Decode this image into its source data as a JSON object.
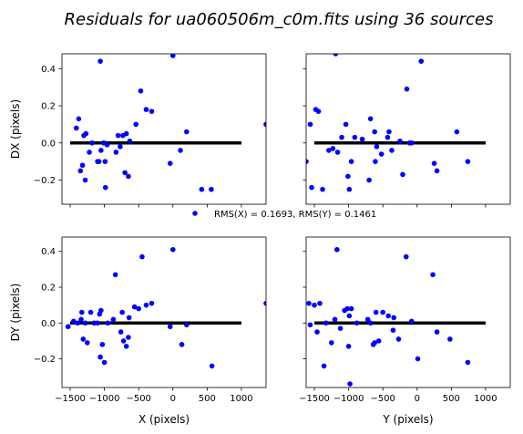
{
  "chart_data": {
    "type": "scatter",
    "title": "Residuals for ua060506m_c0m.fits using 36 sources",
    "annotation": "RMS(X) = 0.1693, RMS(Y) = 0.1461",
    "marker_color": "#0000ff",
    "zero_line_color": "#000000",
    "grid": false,
    "panels": [
      {
        "id": "dx-vs-x",
        "xlabel": "",
        "ylabel": "DX (pixels)",
        "xlim": [
          -1620,
          1360
        ],
        "ylim": [
          -0.33,
          0.48
        ],
        "xticks": [
          -1500,
          -1000,
          -500,
          0,
          500,
          1000
        ],
        "xtick_labels": [
          "",
          "",
          "",
          "",
          "",
          ""
        ],
        "yticks": [
          -0.2,
          0.0,
          0.2,
          0.4
        ],
        "ytick_labels": [
          "−0.2",
          "0.0",
          "0.2",
          "0.4"
        ],
        "x": [
          -1410,
          -1375,
          -1350,
          -1320,
          -1300,
          -1280,
          -1270,
          -1220,
          -1180,
          -1100,
          -1080,
          -1060,
          -1050,
          -1010,
          -990,
          -985,
          -960,
          -830,
          -800,
          -770,
          -730,
          -700,
          -680,
          -650,
          -630,
          -540,
          -470,
          -390,
          -310,
          -40,
          0,
          110,
          200,
          420,
          560,
          1360
        ],
        "y": [
          0.08,
          0.13,
          -0.15,
          -0.12,
          0.04,
          -0.2,
          0.05,
          -0.05,
          0.0,
          -0.1,
          -0.1,
          0.44,
          -0.04,
          0.0,
          -0.1,
          -0.24,
          -0.01,
          -0.05,
          0.04,
          -0.02,
          0.04,
          -0.16,
          0.05,
          -0.18,
          0.01,
          0.1,
          0.28,
          0.18,
          0.17,
          -0.11,
          0.47,
          -0.04,
          0.06,
          -0.25,
          -0.25,
          0.1
        ]
      },
      {
        "id": "dx-vs-y",
        "xlabel": "",
        "ylabel": "",
        "xlim": [
          -1620,
          1360
        ],
        "ylim": [
          -0.33,
          0.48
        ],
        "xticks": [
          -1500,
          -1000,
          -500,
          0,
          500,
          1000
        ],
        "xtick_labels": [
          "",
          "",
          "",
          "",
          "",
          ""
        ],
        "yticks": [
          -0.2,
          0.0,
          0.2,
          0.4
        ],
        "ytick_labels": [
          "",
          "",
          "",
          ""
        ],
        "x": [
          -1620,
          -1560,
          -1540,
          -1480,
          -1440,
          -1380,
          -1290,
          -1230,
          -1190,
          -1160,
          -1100,
          -1040,
          -1010,
          -990,
          -960,
          -910,
          -800,
          -700,
          -680,
          -620,
          -610,
          -590,
          -520,
          -430,
          -410,
          -370,
          -250,
          -210,
          -150,
          -110,
          -80,
          60,
          250,
          290,
          580,
          740
        ],
        "y": [
          -0.1,
          0.1,
          -0.24,
          0.18,
          0.17,
          -0.25,
          -0.04,
          -0.03,
          0.48,
          -0.05,
          0.03,
          0.1,
          -0.18,
          -0.25,
          -0.1,
          0.03,
          0.02,
          -0.2,
          0.13,
          0.06,
          -0.1,
          -0.02,
          -0.06,
          0.03,
          0.06,
          -0.04,
          0.01,
          -0.17,
          0.29,
          0.0,
          0.0,
          0.44,
          -0.11,
          -0.15,
          0.06,
          -0.1
        ]
      },
      {
        "id": "dy-vs-x",
        "xlabel": "X (pixels)",
        "ylabel": "DY (pixels)",
        "xlim": [
          -1620,
          1360
        ],
        "ylim": [
          -0.36,
          0.48
        ],
        "xticks": [
          -1500,
          -1000,
          -500,
          0,
          500,
          1000
        ],
        "xtick_labels": [
          "−1500",
          "−1000",
          "−500",
          "0",
          "500",
          "1000"
        ],
        "yticks": [
          -0.2,
          0.0,
          0.2,
          0.4
        ],
        "ytick_labels": [
          "−0.2",
          "0.0",
          "0.2",
          "0.4"
        ],
        "x": [
          -1530,
          -1450,
          -1390,
          -1340,
          -1330,
          -1310,
          -1280,
          -1250,
          -1200,
          -1150,
          -1100,
          -1070,
          -1060,
          -1050,
          -1030,
          -1000,
          -950,
          -870,
          -840,
          -760,
          -740,
          -720,
          -680,
          -650,
          -640,
          -560,
          -500,
          -450,
          -390,
          -310,
          -40,
          0,
          130,
          200,
          570,
          1360
        ],
        "y": [
          -0.02,
          0.01,
          0.0,
          0.02,
          0.06,
          -0.09,
          0.0,
          -0.11,
          0.06,
          0.0,
          0.0,
          0.05,
          -0.19,
          0.07,
          -0.12,
          -0.22,
          0.0,
          0.02,
          0.27,
          -0.05,
          0.06,
          -0.1,
          -0.13,
          -0.08,
          0.03,
          0.09,
          0.08,
          0.37,
          0.1,
          0.11,
          -0.02,
          0.41,
          -0.12,
          -0.01,
          -0.24,
          0.11
        ]
      },
      {
        "id": "dy-vs-y",
        "xlabel": "Y (pixels)",
        "ylabel": "",
        "xlim": [
          -1620,
          1360
        ],
        "ylim": [
          -0.36,
          0.48
        ],
        "xticks": [
          -1500,
          -1000,
          -500,
          0,
          500,
          1000
        ],
        "xtick_labels": [
          "−1500",
          "−1000",
          "−500",
          "0",
          "500",
          "1000"
        ],
        "yticks": [
          -0.2,
          0.0,
          0.2,
          0.4
        ],
        "ytick_labels": [
          "",
          "",
          "",
          ""
        ],
        "x": [
          -1580,
          -1560,
          -1500,
          -1460,
          -1420,
          -1360,
          -1330,
          -1250,
          -1200,
          -1170,
          -1120,
          -1060,
          -1020,
          -1000,
          -980,
          -960,
          -880,
          -680,
          -640,
          -620,
          -600,
          -560,
          -500,
          -420,
          -340,
          -270,
          -160,
          -80,
          10,
          230,
          290,
          480,
          740,
          -720,
          -350,
          -990
        ],
        "y": [
          0.11,
          -0.01,
          0.1,
          -0.05,
          0.11,
          -0.24,
          0.0,
          -0.11,
          0.02,
          0.41,
          -0.03,
          0.07,
          0.08,
          -0.13,
          -0.34,
          0.08,
          0.0,
          0.0,
          -0.12,
          -0.11,
          0.06,
          -0.1,
          0.06,
          0.04,
          0.03,
          -0.09,
          0.37,
          0.01,
          -0.2,
          0.27,
          -0.05,
          -0.09,
          -0.22,
          0.02,
          -0.04,
          0.04
        ]
      }
    ]
  }
}
